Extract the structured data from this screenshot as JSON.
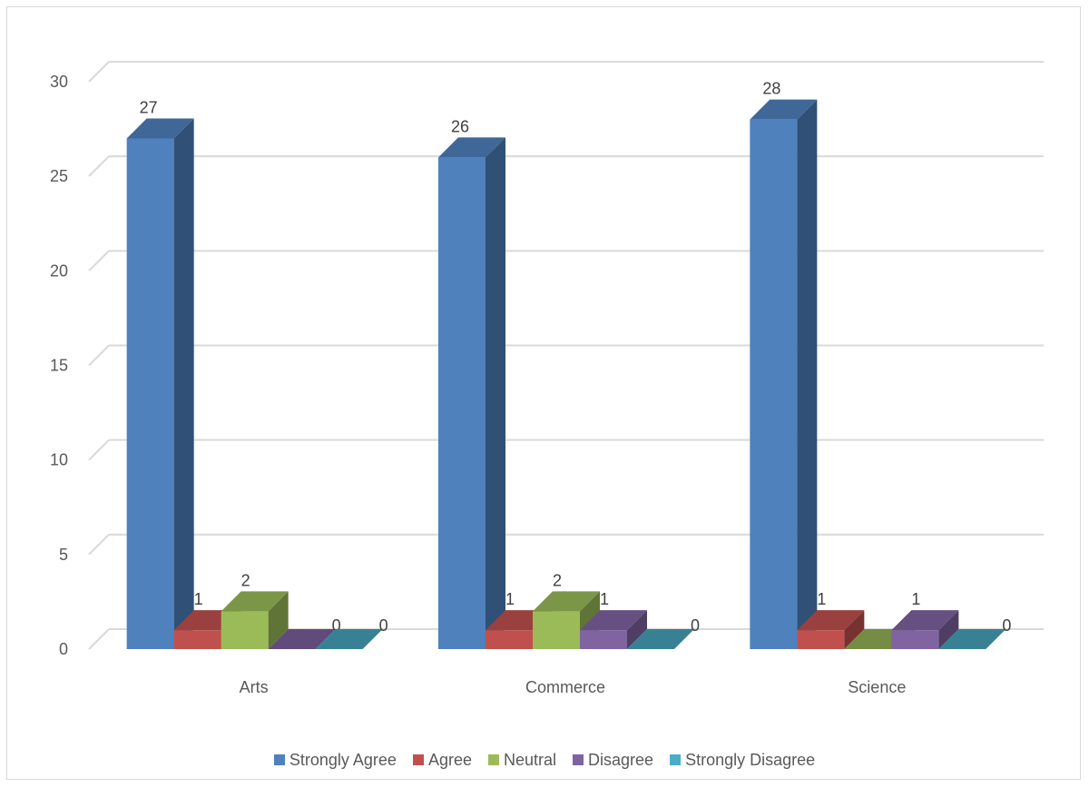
{
  "chart_data": {
    "type": "bar",
    "categories": [
      "Arts",
      "Commerce",
      "Science"
    ],
    "series": [
      {
        "name": "Strongly Agree",
        "values": [
          27,
          26,
          28
        ],
        "color": "#4f81bd"
      },
      {
        "name": "Agree",
        "values": [
          1,
          1,
          1
        ],
        "color": "#c0504d"
      },
      {
        "name": "Neutral",
        "values": [
          2,
          2,
          0
        ],
        "color": "#9bbb59"
      },
      {
        "name": "Disagree",
        "values": [
          0,
          1,
          1
        ],
        "color": "#8064a2"
      },
      {
        "name": "Strongly Disagree",
        "values": [
          0,
          0,
          0
        ],
        "color": "#4bacc6"
      }
    ],
    "yticks": [
      "0",
      "5",
      "10",
      "15",
      "20",
      "25",
      "30"
    ],
    "ylim": [
      0,
      30
    ],
    "grid": true,
    "legend_position": "bottom",
    "style": "3d-clustered-column"
  }
}
